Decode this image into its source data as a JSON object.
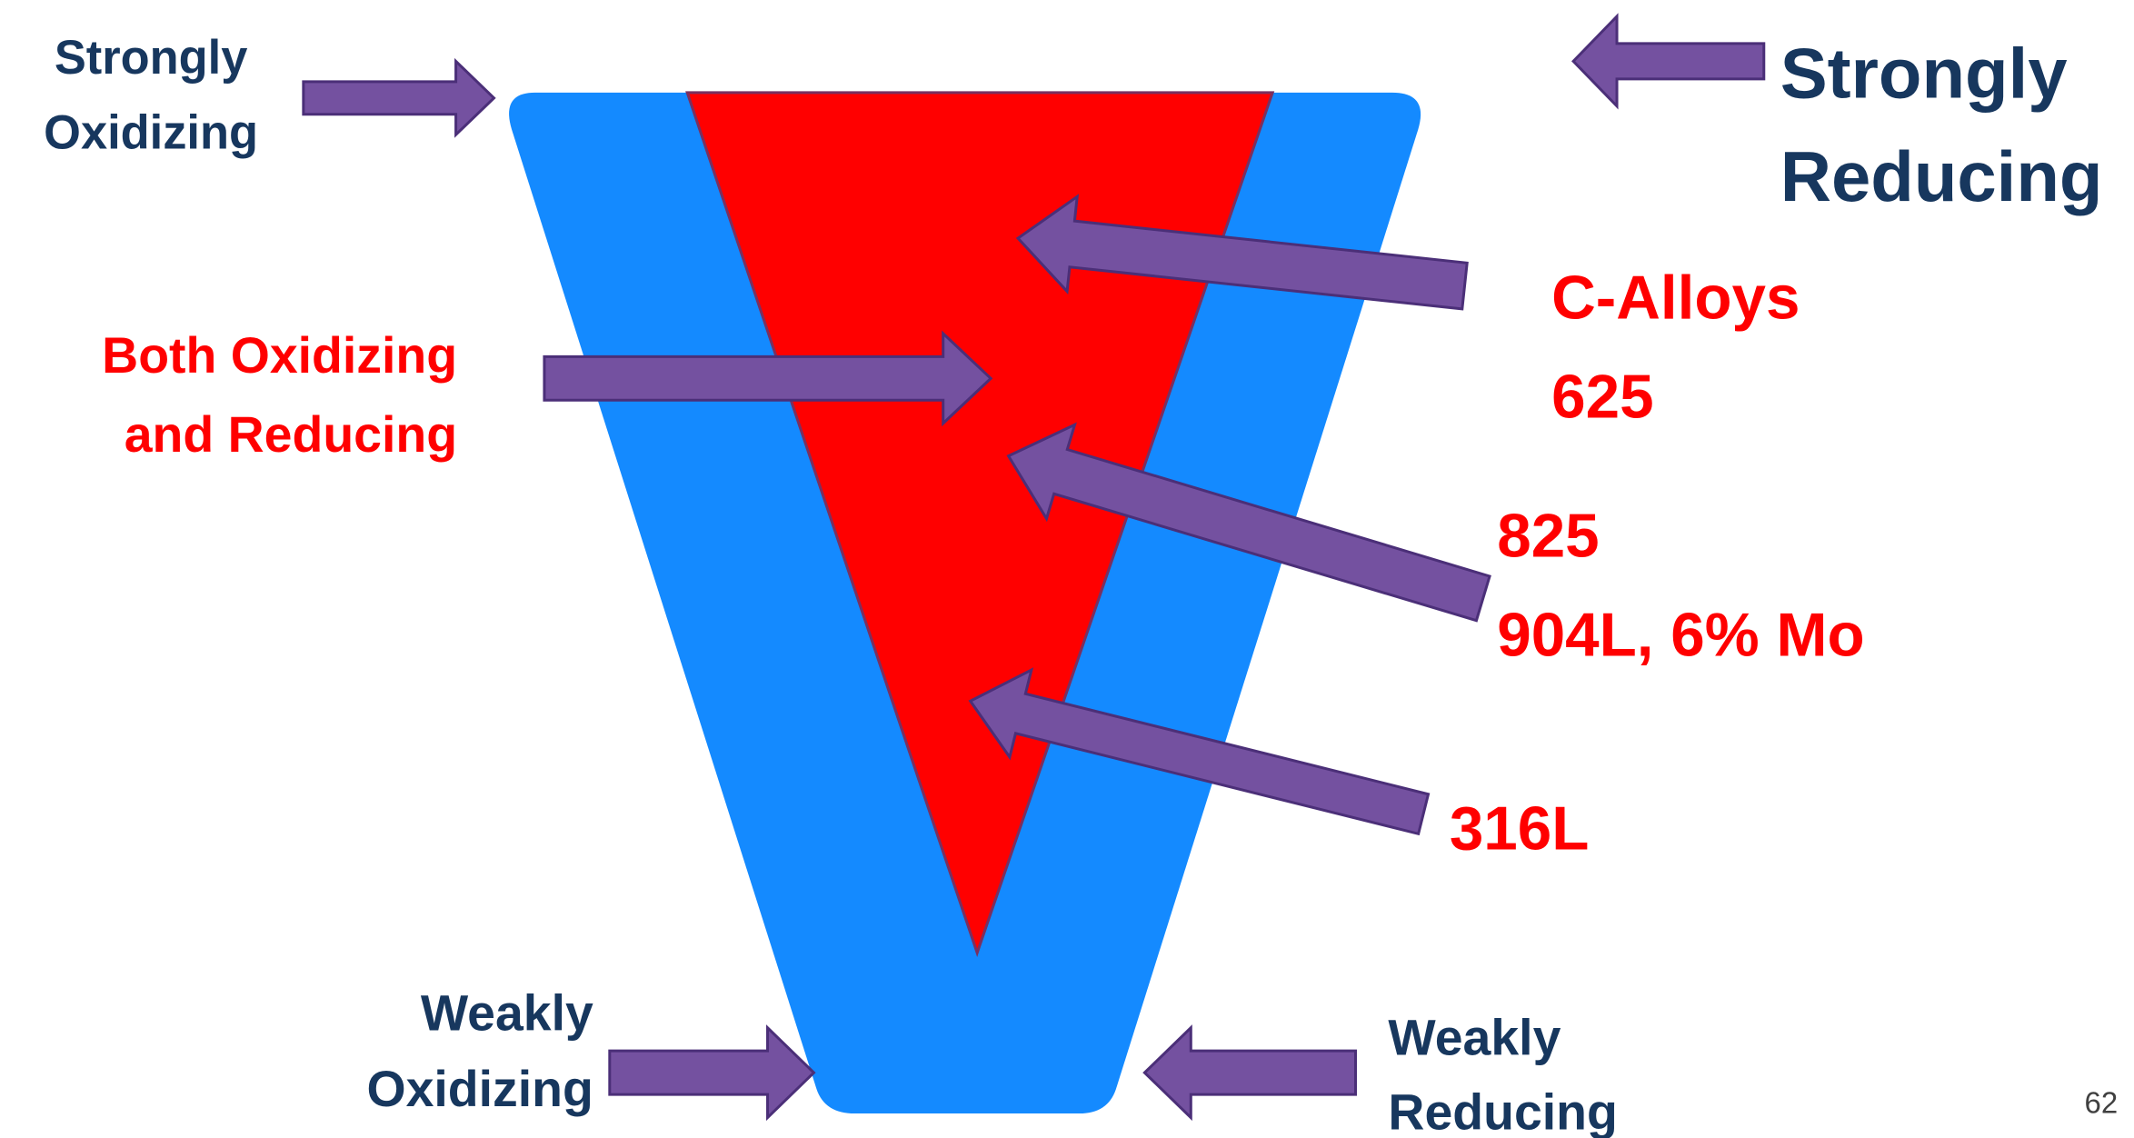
{
  "labels": [
    {
      "lines": [
        "Strongly",
        "Oxidizing"
      ]
    },
    {
      "lines": [
        "Strongly",
        "Reducing"
      ]
    },
    {
      "lines": [
        "Both Oxidizing",
        "and Reducing"
      ]
    },
    {
      "lines": [
        "C-Alloys",
        "625"
      ]
    },
    {
      "lines": [
        "825",
        "904L, 6% Mo"
      ]
    },
    {
      "lines": [
        "316L"
      ]
    },
    {
      "lines": [
        "Weakly",
        "Oxidizing"
      ]
    },
    {
      "lines": [
        "Weakly",
        "Reducing"
      ]
    }
  ],
  "page_number": "62"
}
